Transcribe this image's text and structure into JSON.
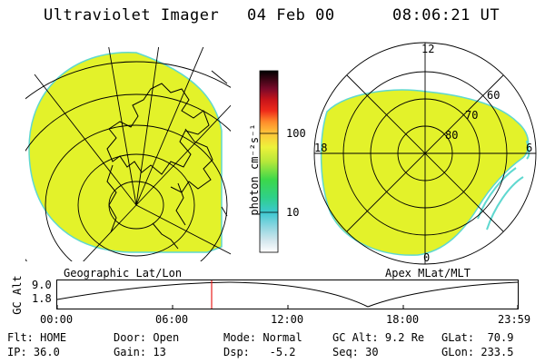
{
  "header": {
    "instrument": "Ultraviolet Imager",
    "date": "04 Feb 00",
    "time": "08:06:21 UT"
  },
  "geo_panel": {
    "caption": "Geographic Lat/Lon"
  },
  "apex_panel": {
    "caption": "Apex MLat/MLT",
    "mlt_labels": {
      "top": "12",
      "left": "18",
      "right": "6",
      "bottom": "0"
    },
    "lat_labels": [
      "60",
      "70",
      "80"
    ]
  },
  "colorbar": {
    "unit_label": "photon cm⁻²s⁻¹",
    "ticks": [
      "100",
      "10"
    ]
  },
  "altitude_plot": {
    "ylabel": "GC Alt",
    "y_ticks": [
      "9.0",
      "1.8"
    ],
    "x_ticks": [
      "00:00",
      "06:00",
      "12:00",
      "18:00",
      "23:59"
    ],
    "current_time_marker": "08:06",
    "marker_color": "#e8201f"
  },
  "status": {
    "col1": [
      {
        "label": "Flt:",
        "value": "HOME"
      },
      {
        "label": "IP:",
        "value": "36.0"
      }
    ],
    "col2": [
      {
        "label": "Door:",
        "value": "Open"
      },
      {
        "label": "Gain:",
        "value": "13"
      }
    ],
    "col3": [
      {
        "label": "Mode:",
        "value": "Normal"
      },
      {
        "label": "Dsp:",
        "value": "-5.2"
      }
    ],
    "col4": [
      {
        "label": "GC Alt:",
        "value": "9.2 Re"
      },
      {
        "label": "Seq:",
        "value": "30"
      }
    ],
    "col5": [
      {
        "label": "GLat:",
        "value": "70.9"
      },
      {
        "label": "GLon:",
        "value": "233.5"
      }
    ]
  },
  "colors": {
    "image_fill": "#e3f22a",
    "image_edge": "#5fd8d0"
  }
}
